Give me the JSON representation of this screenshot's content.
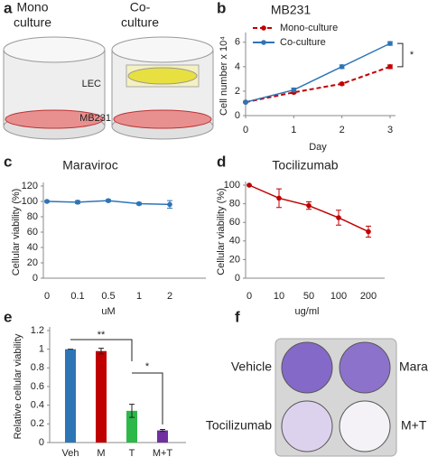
{
  "figure": {
    "panel_a": {
      "label": "a",
      "mono_culture": [
        "Mono",
        "culture"
      ],
      "co_culture": [
        "Co-",
        "culture"
      ],
      "lec": "LEC",
      "mb231": "MB231"
    },
    "panel_f": {
      "label": "f",
      "wells": [
        "Vehicle",
        "Maraviroc",
        "Tocilizumab",
        "M+T"
      ]
    }
  },
  "chart_data": [
    {
      "panel_label": "b",
      "type": "line",
      "title": "MB231",
      "x": [
        0,
        1,
        2,
        3
      ],
      "xlim": [
        0,
        3
      ],
      "xticks": [
        0,
        1,
        2,
        3
      ],
      "ylim": [
        0,
        6.5
      ],
      "yticks": [
        0,
        2,
        4,
        6
      ],
      "x_label": "Day",
      "y_label": "Cell number x 10⁴",
      "legend": "upper left",
      "annotations": [
        "*"
      ],
      "series": [
        {
          "name": "Mono-culture",
          "color": "#c00000",
          "dashed": true,
          "values": [
            1.1,
            1.9,
            2.6,
            4.0
          ],
          "errors": [
            0.05,
            0.1,
            0.1,
            0.15
          ]
        },
        {
          "name": "Co-culture",
          "color": "#2e75b6",
          "dashed": false,
          "values": [
            1.1,
            2.1,
            4.0,
            5.9
          ],
          "errors": [
            0.05,
            0.15,
            0.15,
            0.15
          ]
        }
      ]
    },
    {
      "panel_label": "c",
      "type": "line",
      "title": "Maraviroc",
      "categories": [
        "0",
        "0.1",
        "0.5",
        "1",
        "2"
      ],
      "ylim": [
        0,
        120
      ],
      "yticks": [
        0,
        20,
        40,
        60,
        80,
        100,
        120
      ],
      "x_label": "uM",
      "y_label": "Cellular viability (%)",
      "color": "#2e75b6",
      "values": [
        100,
        99,
        101,
        97,
        96
      ],
      "errors": [
        1,
        2,
        1.5,
        1.5,
        5
      ]
    },
    {
      "panel_label": "d",
      "type": "line",
      "title": "Tocilizumab",
      "categories": [
        "0",
        "10",
        "50",
        "100",
        "200"
      ],
      "ylim": [
        0,
        100
      ],
      "yticks": [
        0,
        20,
        40,
        60,
        80,
        100
      ],
      "x_label": "ug/ml",
      "y_label": "Cellular viability (%)",
      "color": "#c00000",
      "values": [
        100,
        86,
        78,
        65,
        50
      ],
      "errors": [
        0,
        10,
        4,
        8,
        6
      ]
    },
    {
      "panel_label": "e",
      "type": "bar",
      "categories": [
        "Veh",
        "M",
        "T",
        "M+T"
      ],
      "ylim": [
        0,
        1.2
      ],
      "yticks": [
        0,
        0.2,
        0.4,
        0.6,
        0.8,
        1,
        1.2
      ],
      "y_label": "Relative cellular viability",
      "colors": [
        "#2e75b6",
        "#c00000",
        "#2eb84a",
        "#7030a0"
      ],
      "values": [
        1.0,
        0.98,
        0.34,
        0.13
      ],
      "errors": [
        0,
        0.03,
        0.07,
        0.01
      ],
      "annotations": [
        "**",
        "*"
      ]
    }
  ]
}
